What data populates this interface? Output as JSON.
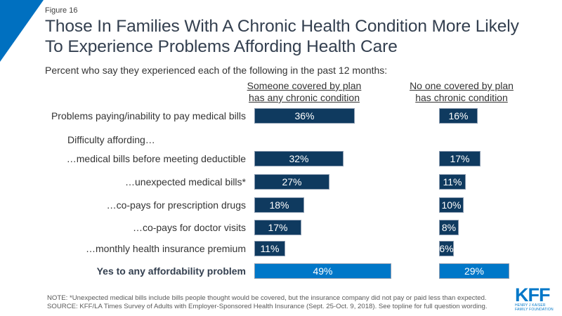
{
  "figure_label": "Figure 16",
  "title_line1": "Those In Families With A Chronic Health Condition More Likely",
  "title_line2": "To Experience Problems Affording Health Care",
  "subtitle": "Percent who say they experienced each of the following in the past 12 months:",
  "colors": {
    "dark_bar": "#0f3a5f",
    "highlight_bar": "#0077c8",
    "accent": "#0070c0"
  },
  "chart_data": {
    "type": "bar",
    "orientation": "horizontal",
    "title": "Those In Families With A Chronic Health Condition More Likely To Experience Problems Affording Health Care",
    "subtitle": "Percent who say they experienced each of the following in the past 12 months:",
    "group_label": "Difficulty affording…",
    "categories": [
      "Problems paying/inability to pay medical bills",
      "…medical bills before meeting deductible",
      "…unexpected medical bills*",
      "…co-pays for prescription drugs",
      "…co-pays for doctor visits",
      "…monthly health insurance premium",
      "Yes to any affordability problem"
    ],
    "series": [
      {
        "name_line1": "Someone covered by plan",
        "name_line2": "has any chronic condition",
        "name": "Someone covered by plan has any chronic condition",
        "values": [
          36,
          32,
          27,
          18,
          17,
          11,
          49
        ],
        "labels": [
          "36%",
          "32%",
          "27%",
          "18%",
          "17%",
          "11%",
          "49%"
        ]
      },
      {
        "name_line1": "No one covered by plan",
        "name_line2": "has chronic condition",
        "name": "No one covered by plan has chronic condition",
        "values": [
          16,
          17,
          11,
          10,
          8,
          6,
          29
        ],
        "labels": [
          "16%",
          "17%",
          "11%",
          "10%",
          "8%",
          "6%",
          "29%"
        ]
      }
    ],
    "highlight_category_index": 6,
    "unit": "%",
    "xlabel": "",
    "ylabel": "",
    "grid": false
  },
  "note_line1": "NOTE: *Unexpected medical bills include bills people thought would be covered, but the insurance company did not pay or paid less than expected.",
  "note_line2": "SOURCE: KFF/LA Times Survey of Adults with Employer-Sponsored Health Insurance (Sept. 25-Oct. 9, 2018). See topline for full question wording.",
  "logo": {
    "text": "KFF",
    "sub_line1": "HENRY J KAISER",
    "sub_line2": "FAMILY FOUNDATION"
  }
}
